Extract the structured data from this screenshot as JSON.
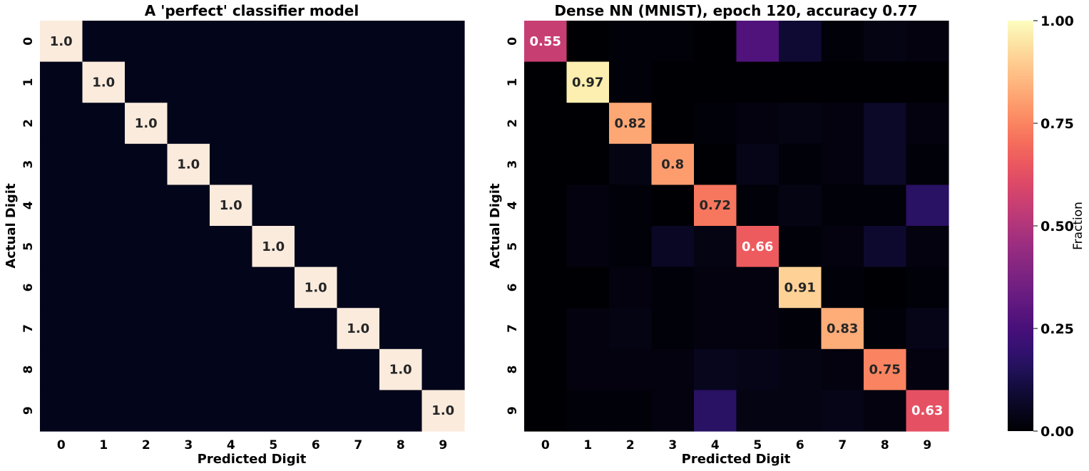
{
  "chart_data": [
    {
      "type": "heatmap",
      "title": "A 'perfect' classifier model",
      "xlabel": "Predicted Digit",
      "ylabel": "Actual Digit",
      "x_categories": [
        "0",
        "1",
        "2",
        "3",
        "4",
        "5",
        "6",
        "7",
        "8",
        "9"
      ],
      "y_categories": [
        "0",
        "1",
        "2",
        "3",
        "4",
        "5",
        "6",
        "7",
        "8",
        "9"
      ],
      "values": [
        [
          1,
          0,
          0,
          0,
          0,
          0,
          0,
          0,
          0,
          0
        ],
        [
          0,
          1,
          0,
          0,
          0,
          0,
          0,
          0,
          0,
          0
        ],
        [
          0,
          0,
          1,
          0,
          0,
          0,
          0,
          0,
          0,
          0
        ],
        [
          0,
          0,
          0,
          1,
          0,
          0,
          0,
          0,
          0,
          0
        ],
        [
          0,
          0,
          0,
          0,
          1,
          0,
          0,
          0,
          0,
          0
        ],
        [
          0,
          0,
          0,
          0,
          0,
          1,
          0,
          0,
          0,
          0
        ],
        [
          0,
          0,
          0,
          0,
          0,
          0,
          1,
          0,
          0,
          0
        ],
        [
          0,
          0,
          0,
          0,
          0,
          0,
          0,
          1,
          0,
          0
        ],
        [
          0,
          0,
          0,
          0,
          0,
          0,
          0,
          0,
          1,
          0
        ],
        [
          0,
          0,
          0,
          0,
          0,
          0,
          0,
          0,
          0,
          1
        ]
      ],
      "annotations": [
        {
          "row": 0,
          "col": 0,
          "text": "1.0"
        },
        {
          "row": 1,
          "col": 1,
          "text": "1.0"
        },
        {
          "row": 2,
          "col": 2,
          "text": "1.0"
        },
        {
          "row": 3,
          "col": 3,
          "text": "1.0"
        },
        {
          "row": 4,
          "col": 4,
          "text": "1.0"
        },
        {
          "row": 5,
          "col": 5,
          "text": "1.0"
        },
        {
          "row": 6,
          "col": 6,
          "text": "1.0"
        },
        {
          "row": 7,
          "col": 7,
          "text": "1.0"
        },
        {
          "row": 8,
          "col": 8,
          "text": "1.0"
        },
        {
          "row": 9,
          "col": 9,
          "text": "1.0"
        }
      ],
      "scale": "auto",
      "zlim": [
        0,
        1
      ],
      "colormap": "rocket"
    },
    {
      "type": "heatmap",
      "title": "Dense NN (MNIST), epoch 120, accuracy 0.77",
      "xlabel": "Predicted Digit",
      "ylabel": "Actual Digit",
      "x_categories": [
        "0",
        "1",
        "2",
        "3",
        "4",
        "5",
        "6",
        "7",
        "8",
        "9"
      ],
      "y_categories": [
        "0",
        "1",
        "2",
        "3",
        "4",
        "5",
        "6",
        "7",
        "8",
        "9"
      ],
      "values": [
        [
          0.55,
          0.0,
          0.01,
          0.01,
          0.0,
          0.27,
          0.09,
          0.01,
          0.03,
          0.02
        ],
        [
          0.0,
          0.97,
          0.01,
          0.0,
          0.0,
          0.0,
          0.0,
          0.0,
          0.0,
          0.0
        ],
        [
          0.0,
          0.0,
          0.82,
          0.0,
          0.01,
          0.02,
          0.03,
          0.02,
          0.07,
          0.02
        ],
        [
          0.0,
          0.0,
          0.03,
          0.8,
          0.0,
          0.04,
          0.01,
          0.02,
          0.07,
          0.01
        ],
        [
          0.0,
          0.02,
          0.01,
          0.0,
          0.72,
          0.01,
          0.03,
          0.01,
          0.01,
          0.17
        ],
        [
          0.0,
          0.02,
          0.01,
          0.06,
          0.03,
          0.66,
          0.01,
          0.02,
          0.08,
          0.02
        ],
        [
          0.0,
          0.0,
          0.02,
          0.01,
          0.02,
          0.02,
          0.91,
          0.01,
          0.0,
          0.01
        ],
        [
          0.0,
          0.02,
          0.03,
          0.01,
          0.02,
          0.02,
          0.01,
          0.83,
          0.01,
          0.04
        ],
        [
          0.0,
          0.02,
          0.02,
          0.02,
          0.05,
          0.04,
          0.03,
          0.02,
          0.75,
          0.02
        ],
        [
          0.0,
          0.01,
          0.01,
          0.02,
          0.17,
          0.03,
          0.03,
          0.04,
          0.02,
          0.63
        ]
      ],
      "annotations": [
        {
          "row": 0,
          "col": 0,
          "text": "0.55"
        },
        {
          "row": 1,
          "col": 1,
          "text": "0.97"
        },
        {
          "row": 2,
          "col": 2,
          "text": "0.82"
        },
        {
          "row": 3,
          "col": 3,
          "text": "0.8"
        },
        {
          "row": 4,
          "col": 4,
          "text": "0.72"
        },
        {
          "row": 5,
          "col": 5,
          "text": "0.66"
        },
        {
          "row": 6,
          "col": 6,
          "text": "0.91"
        },
        {
          "row": 7,
          "col": 7,
          "text": "0.83"
        },
        {
          "row": 8,
          "col": 8,
          "text": "0.75"
        },
        {
          "row": 9,
          "col": 9,
          "text": "0.63"
        }
      ],
      "scale": "shared_colorbar",
      "zlim": [
        0,
        1
      ],
      "colormap": "magma"
    }
  ],
  "colorbar": {
    "label": "Fraction",
    "ticks": [
      "0.00",
      "0.25",
      "0.50",
      "0.75",
      "1.00"
    ],
    "tick_values": [
      0,
      0.25,
      0.5,
      0.75,
      1.0
    ],
    "range": [
      0,
      1
    ],
    "colormap": "magma"
  },
  "colors": {
    "rocket_low": "#03051a",
    "rocket_high": "#faebdd"
  }
}
